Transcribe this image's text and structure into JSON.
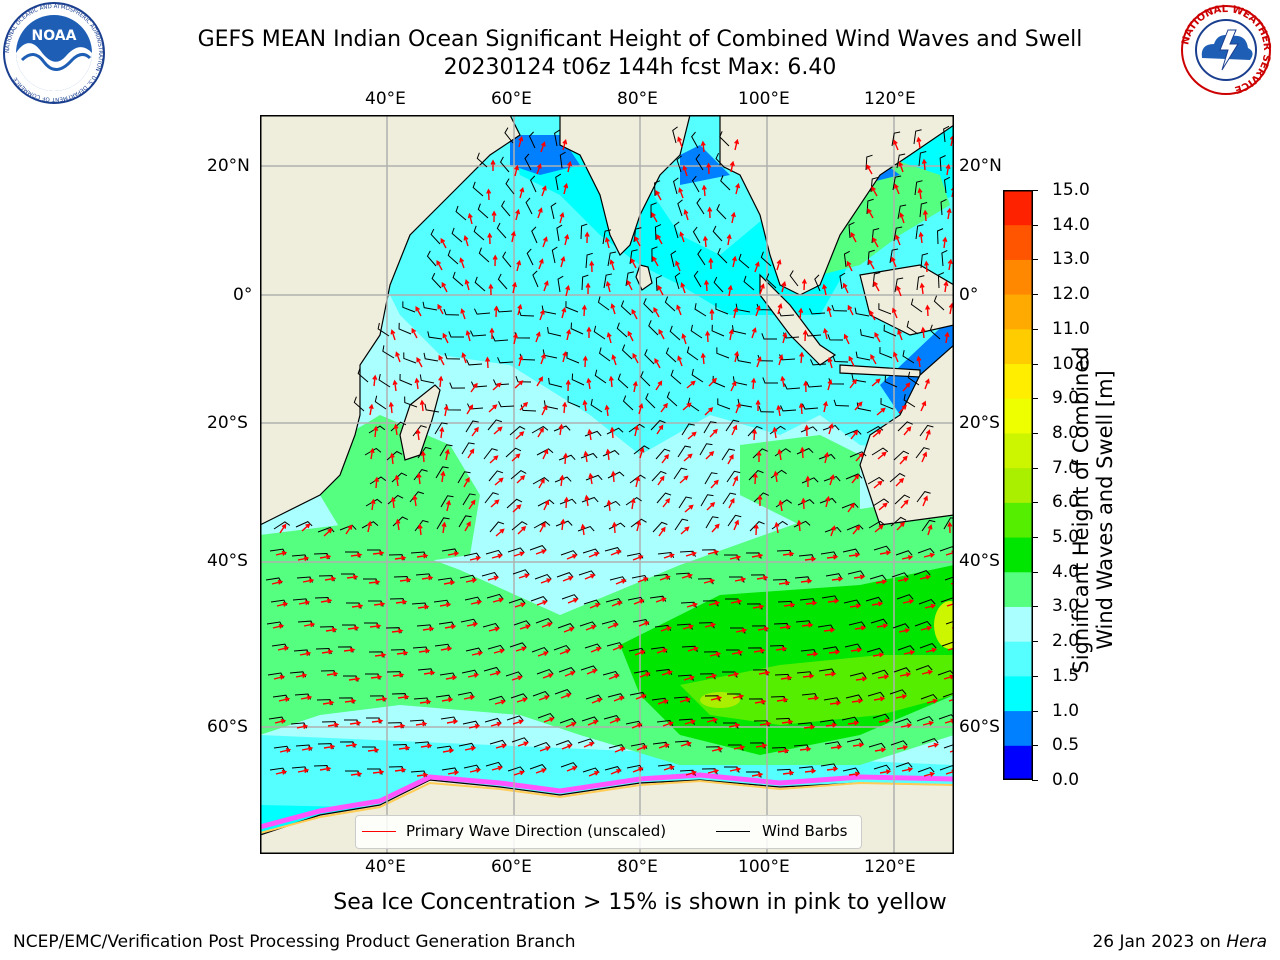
{
  "title": {
    "line1": "GEFS MEAN Indian Ocean Significant Height of Combined Wind Waves and Swell",
    "line2": "20230124 t06z 144h fcst   Max: 6.40"
  },
  "logos": {
    "noaa": {
      "center_text": "NOAA",
      "ring_text": "NATIONAL OCEANIC AND ATMOSPHERIC ADMINISTRATION · U.S. DEPARTMENT OF COMMERCE"
    },
    "nws": {
      "ring_text": "NATIONAL WEATHER SERVICE"
    }
  },
  "map": {
    "lon_ticks_top": [
      "40°E",
      "60°E",
      "80°E",
      "100°E",
      "120°E"
    ],
    "lon_ticks_bottom": [
      "40°E",
      "60°E",
      "80°E",
      "100°E",
      "120°E"
    ],
    "lat_ticks_left": [
      "20°N",
      "0°",
      "20°S",
      "40°S",
      "60°S"
    ],
    "lat_ticks_right": [
      "20°N",
      "0°",
      "20°S",
      "40°S",
      "60°S"
    ],
    "colors": {
      "land": "#efeedd",
      "ocean_low": "#aaffff",
      "arrow": "#ff0000",
      "barb": "#000000",
      "ice": "#ff55ff"
    }
  },
  "legend": {
    "primary_wave": "Primary Wave Direction (unscaled)",
    "wind_barbs": "Wind Barbs"
  },
  "colorbar": {
    "label_line1": "Significant Height of Combined",
    "label_line2": "Wind Waves and Swell [m]",
    "ticks": [
      "15.0",
      "14.0",
      "13.0",
      "12.0",
      "11.0",
      "10.0",
      "9.0",
      "8.0",
      "7.0",
      "6.0",
      "5.0",
      "4.0",
      "3.0",
      "2.0",
      "1.5",
      "1.0",
      "0.5",
      "0.0"
    ],
    "colors": [
      "#0000ff",
      "#0080ff",
      "#00ffff",
      "#55ffff",
      "#aaffff",
      "#55ff80",
      "#00e600",
      "#55ee00",
      "#aaee00",
      "#ccf500",
      "#eeff00",
      "#ffee00",
      "#ffcc00",
      "#ffaa00",
      "#ff8800",
      "#ff5500",
      "#ff2200"
    ]
  },
  "ice_note": "Sea Ice Concentration > 15% is shown in pink to yellow",
  "footer": {
    "left": "NCEP/EMC/Verification Post Processing Product Generation Branch",
    "right_prefix": "26 Jan 2023 on ",
    "right_host": "Hera"
  }
}
